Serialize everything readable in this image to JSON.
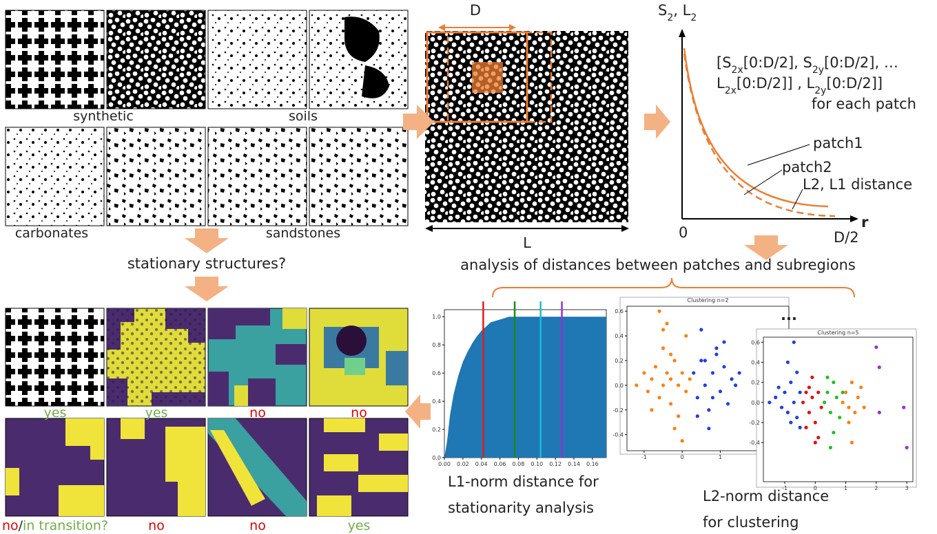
{
  "library": {
    "row1_labels": [
      "synthetic",
      "soils"
    ],
    "row2_labels": [
      "carbonates",
      "sandstones"
    ],
    "question": "stationary structures?"
  },
  "results": [
    [
      {
        "text": "yes",
        "color": "#70ad47"
      }
    ],
    [
      {
        "text": "yes",
        "color": "#70ad47"
      }
    ],
    [
      {
        "text": "no",
        "color": "#e00000"
      }
    ],
    [
      {
        "text": "no",
        "color": "#e00000"
      }
    ],
    [
      {
        "text": "no",
        "color": "#e00000"
      },
      {
        "text": "/",
        "color": "#222222"
      },
      {
        "text": "in transition?",
        "color": "#70ad47"
      }
    ],
    [
      {
        "text": "no",
        "color": "#e00000"
      }
    ],
    [
      {
        "text": "no",
        "color": "#e00000"
      }
    ],
    [
      {
        "text": "yes",
        "color": "#70ad47"
      }
    ]
  ],
  "sampling": {
    "patch_label": "D",
    "domain_label": "L"
  },
  "profile_plot": {
    "y_label": [
      {
        "text": "S"
      },
      {
        "text": "2",
        "sub": true
      },
      {
        "text": ", L"
      },
      {
        "text": "2",
        "sub": true
      }
    ],
    "x_label": "r",
    "origin_label": "0",
    "end_label": "D/2",
    "vector": [
      [
        {
          "text": "[S"
        },
        {
          "text": "2x",
          "sub": true
        },
        {
          "text": "[0:D/2], S"
        },
        {
          "text": "2y",
          "sub": true
        },
        {
          "text": "[0:D/2], …"
        }
      ],
      [
        {
          "text": "L"
        },
        {
          "text": "2x",
          "sub": true
        },
        {
          "text": "[0:D/2]] , L"
        },
        {
          "text": "2y",
          "sub": true
        },
        {
          "text": "[0:D/2]]"
        }
      ],
      [
        {
          "text": "for each patch"
        }
      ]
    ],
    "curve_labels": [
      "patch1",
      "patch2",
      "L2, L1 distance"
    ]
  },
  "analysis": "analysis of distances between patches and subregions",
  "histogram": {
    "xlim": [
      0,
      0.175
    ],
    "ylim": [
      0,
      1.05
    ],
    "xticks": [
      {
        "value": 0,
        "label": "0.00"
      },
      0.02,
      0.04,
      0.06,
      0.08,
      {
        "value": 0.1,
        "label": "0.10"
      },
      0.12,
      0.14,
      0.16
    ],
    "yticks": [
      {
        "value": 0,
        "label": "0.0"
      },
      0.2,
      0.4,
      0.6,
      0.8,
      {
        "value": 1,
        "label": "1.0"
      }
    ],
    "color": "#1f77b4",
    "curve": {
      "x": [
        0,
        0.003,
        0.006,
        0.01,
        0.015,
        0.02,
        0.025,
        0.03,
        0.035,
        0.04,
        0.045,
        0.05,
        0.06,
        0.07,
        0.175
      ],
      "y": [
        0,
        0.12,
        0.3,
        0.45,
        0.58,
        0.68,
        0.75,
        0.81,
        0.86,
        0.9,
        0.93,
        0.96,
        0.98,
        1,
        1
      ]
    },
    "thresholds": [
      {
        "value": 0.042,
        "color": "#e41a1c"
      },
      {
        "value": 0.076,
        "color": "#1a8a1a"
      },
      {
        "value": 0.104,
        "color": "#17becf"
      },
      {
        "value": 0.127,
        "color": "#9b30d0"
      }
    ],
    "caption": [
      "L1-norm distance for",
      "stationarity analysis"
    ]
  },
  "clustering": {
    "more": "...",
    "plots": [
      {
        "title": "Clustering n=2",
        "xlim": [
          -1.45,
          2.8
        ],
        "ylim": [
          -0.53,
          0.64
        ],
        "xticks": [
          -1,
          0,
          1
        ],
        "yticks": [
          0.6,
          0.4,
          0.2,
          {
            "value": 0,
            "label": "0.0"
          },
          -0.2,
          -0.4
        ],
        "series": [
          {
            "color": "#ff7f0e",
            "x": [
              -1.2,
              -1.0,
              -0.9,
              -0.8,
              -0.7,
              -0.6,
              -0.5,
              -0.5,
              -0.4,
              -0.3,
              -0.3,
              -0.2,
              -0.1,
              -0.1,
              0.0,
              0.1,
              0.1,
              0.2,
              -0.6,
              -0.4,
              -0.2,
              -0.8,
              -0.3,
              0.0,
              -0.5
            ],
            "y": [
              0.0,
              0.1,
              -0.05,
              0.05,
              0.15,
              -0.1,
              0.0,
              0.3,
              0.1,
              -0.15,
              0.05,
              0.2,
              0.0,
              -0.25,
              0.1,
              -0.05,
              0.4,
              0.05,
              0.6,
              0.5,
              -0.35,
              -0.2,
              0.25,
              -0.45,
              0.45
            ]
          },
          {
            "color": "#1f3fe0",
            "x": [
              0.3,
              0.4,
              0.5,
              0.6,
              0.7,
              0.8,
              0.9,
              1.0,
              1.1,
              1.2,
              1.3,
              1.5,
              0.5,
              0.7,
              0.9,
              1.1,
              0.4,
              0.6,
              0.8,
              1.4
            ],
            "y": [
              0.1,
              -0.1,
              0.2,
              0.0,
              -0.2,
              0.1,
              0.3,
              -0.05,
              0.15,
              -0.15,
              0.05,
              0.1,
              0.45,
              -0.35,
              0.25,
              0.35,
              -0.25,
              0.2,
              -0.1,
              0.0
            ]
          }
        ]
      },
      {
        "title": "Clustering n=5",
        "xlim": [
          -1.7,
          3.2
        ],
        "ylim": [
          -0.79,
          0.65
        ],
        "xticks": [
          -1,
          0,
          1,
          2,
          3
        ],
        "yticks": [
          0.6,
          0.4,
          0.2,
          {
            "value": 0,
            "label": "0.0"
          },
          -0.2,
          -0.4
        ],
        "series": [
          {
            "color": "#1f3fe0",
            "x": [
              -1.5,
              -1.3,
              -1.1,
              -1.0,
              -0.9,
              -0.8,
              -0.7,
              -0.6,
              -0.5,
              -0.9,
              -0.7,
              -0.5,
              -1.2,
              -0.6,
              -0.8
            ],
            "y": [
              0.0,
              0.05,
              -0.05,
              0.1,
              -0.1,
              0.2,
              0.0,
              -0.15,
              0.1,
              0.4,
              0.6,
              -0.25,
              0.15,
              0.3,
              -0.2
            ]
          },
          {
            "color": "#e01010",
            "x": [
              -0.4,
              -0.3,
              -0.2,
              -0.1,
              0.0,
              0.1,
              0.2,
              -0.3,
              -0.1,
              0.1,
              0.0,
              -0.2
            ],
            "y": [
              0.0,
              0.1,
              -0.1,
              0.05,
              -0.2,
              0.1,
              -0.05,
              -0.25,
              0.25,
              -0.35,
              -0.4,
              0.15
            ]
          },
          {
            "color": "#22c022",
            "x": [
              0.3,
              0.4,
              0.5,
              0.6,
              0.7,
              0.8,
              0.4,
              0.6,
              0.5,
              0.9
            ],
            "y": [
              0.0,
              0.1,
              -0.1,
              0.2,
              0.05,
              -0.15,
              0.25,
              -0.3,
              -0.45,
              0.1
            ]
          },
          {
            "color": "#ff7f0e",
            "x": [
              0.9,
              1.0,
              1.1,
              1.2,
              1.3,
              1.4,
              1.5,
              1.1,
              1.6,
              1.2
            ],
            "y": [
              0.0,
              0.1,
              -0.05,
              0.2,
              -0.1,
              0.05,
              0.15,
              -0.2,
              -0.05,
              -0.4
            ]
          },
          {
            "color": "#9b30d0",
            "x": [
              2.0,
              2.1,
              2.1,
              2.9,
              3.0
            ],
            "y": [
              0.55,
              0.35,
              -0.1,
              -0.05,
              -0.45
            ]
          }
        ]
      }
    ],
    "caption": [
      "L2-norm distance",
      "for clustering"
    ]
  }
}
